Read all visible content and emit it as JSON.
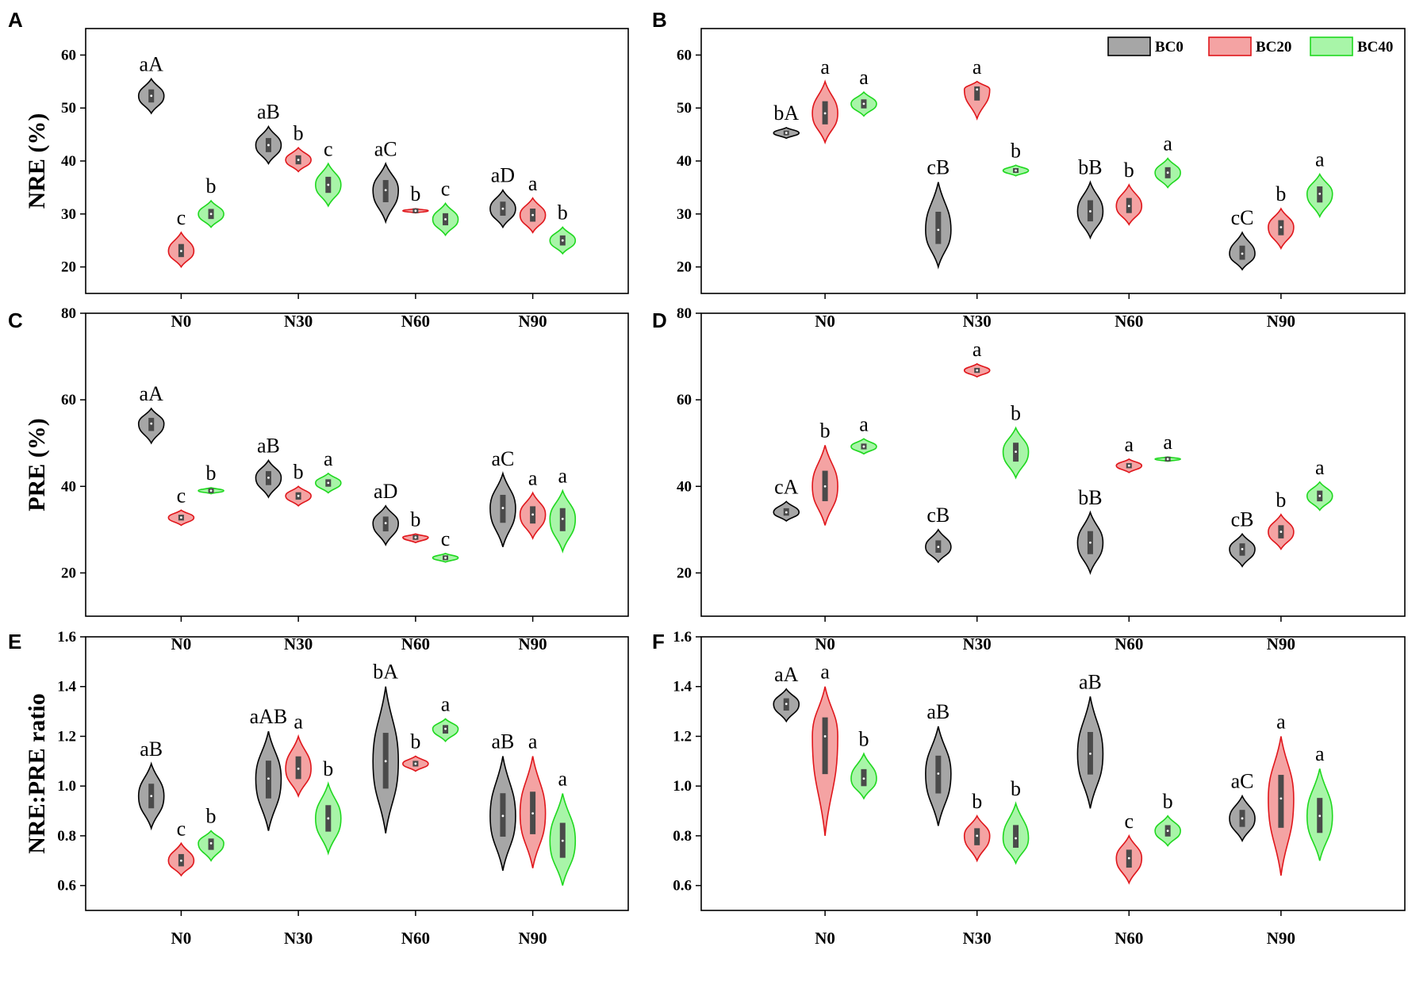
{
  "figure": {
    "legend": [
      {
        "name": "BC0",
        "fill": "#a6a6a6",
        "stroke": "#000000"
      },
      {
        "name": "BC20",
        "fill": "#f4a3a3",
        "stroke": "#e0161b"
      },
      {
        "name": "BC40",
        "fill": "#a8f5a8",
        "stroke": "#1fd81f"
      }
    ]
  },
  "chart_data": [
    {
      "panel": "A",
      "type": "violin",
      "ylabel": "NRE (%)",
      "ylim": [
        15,
        65
      ],
      "yticks": [
        20,
        30,
        40,
        50,
        60
      ],
      "ytick_labels": [
        "20",
        "30",
        "40",
        "50",
        "60"
      ],
      "categories": [
        "N0",
        "N30",
        "N60",
        "N90"
      ],
      "series": [
        {
          "name": "BC0",
          "values": [
            52.3,
            43.0,
            34.5,
            31.0
          ],
          "min": [
            49,
            39.5,
            28.5,
            27.5
          ],
          "max": [
            55.5,
            46.5,
            39.5,
            34.5
          ],
          "labels": [
            "aA",
            "aB",
            "aC",
            "aD"
          ]
        },
        {
          "name": "BC20",
          "values": [
            23.0,
            40.2,
            30.6,
            29.8
          ],
          "min": [
            20,
            38,
            30.2,
            26.5
          ],
          "max": [
            26.5,
            42.5,
            31,
            33
          ],
          "labels": [
            "c",
            "b",
            "b",
            "a"
          ]
        },
        {
          "name": "BC40",
          "values": [
            30.0,
            35.5,
            29.0,
            25.0
          ],
          "min": [
            27.5,
            31.5,
            26,
            22.5
          ],
          "max": [
            32.5,
            39.5,
            32,
            27.5
          ],
          "labels": [
            "b",
            "c",
            "c",
            "b"
          ]
        }
      ]
    },
    {
      "panel": "B",
      "type": "violin",
      "ylabel": "",
      "ylim": [
        15,
        65
      ],
      "yticks": [
        20,
        30,
        40,
        50,
        60
      ],
      "ytick_labels": [
        "20",
        "30",
        "40",
        "50",
        "60"
      ],
      "categories": [
        "N0",
        "N30",
        "N60",
        "N90"
      ],
      "series": [
        {
          "name": "BC0",
          "values": [
            45.3,
            27.0,
            30.5,
            22.5
          ],
          "min": [
            44.3,
            20,
            25.5,
            19.5
          ],
          "max": [
            46.3,
            36,
            36,
            26.5
          ],
          "labels": [
            "bA",
            "cB",
            "bB",
            "cC"
          ]
        },
        {
          "name": "BC20",
          "values": [
            49.0,
            53.5,
            31.5,
            27.5
          ],
          "min": [
            43.5,
            48,
            28,
            23.5
          ],
          "max": [
            55,
            55,
            35.5,
            31
          ],
          "labels": [
            "a",
            "a",
            "b",
            "b"
          ]
        },
        {
          "name": "BC40",
          "values": [
            50.8,
            38.2,
            37.8,
            33.8
          ],
          "min": [
            48.5,
            37.2,
            35,
            29.5
          ],
          "max": [
            53,
            39.2,
            40.5,
            37.5
          ],
          "labels": [
            "a",
            "b",
            "a",
            "a"
          ]
        }
      ]
    },
    {
      "panel": "C",
      "type": "violin",
      "ylabel": "PRE (%)",
      "ylim": [
        10,
        80
      ],
      "yticks": [
        20,
        40,
        60,
        80
      ],
      "ytick_labels": [
        "20",
        "40",
        "60",
        "80"
      ],
      "categories": [
        "N0",
        "N30",
        "N60",
        "N90"
      ],
      "series": [
        {
          "name": "BC0",
          "values": [
            54.5,
            42.0,
            31.5,
            35.0
          ],
          "min": [
            50,
            37.5,
            26.5,
            26
          ],
          "max": [
            58,
            46,
            35.5,
            43
          ],
          "labels": [
            "aA",
            "aB",
            "aD",
            "aC"
          ]
        },
        {
          "name": "BC20",
          "values": [
            32.8,
            37.8,
            28.2,
            33.5
          ],
          "min": [
            31,
            35.5,
            27,
            28
          ],
          "max": [
            34.5,
            40,
            29,
            38.5
          ],
          "labels": [
            "c",
            "b",
            "b",
            "a"
          ]
        },
        {
          "name": "BC40",
          "values": [
            39.0,
            40.8,
            23.5,
            32.5
          ],
          "min": [
            38.3,
            38.5,
            22.5,
            25
          ],
          "max": [
            39.7,
            43,
            24.5,
            39
          ],
          "labels": [
            "b",
            "a",
            "c",
            "a"
          ]
        }
      ]
    },
    {
      "panel": "D",
      "type": "violin",
      "ylabel": "",
      "ylim": [
        10,
        80
      ],
      "yticks": [
        20,
        40,
        60,
        80
      ],
      "ytick_labels": [
        "20",
        "40",
        "60",
        "80"
      ],
      "categories": [
        "N0",
        "N30",
        "N60",
        "N90"
      ],
      "series": [
        {
          "name": "BC0",
          "values": [
            34.0,
            26.0,
            27.0,
            25.5
          ],
          "min": [
            32,
            22.5,
            20,
            21.5
          ],
          "max": [
            36.5,
            30,
            34,
            29
          ],
          "labels": [
            "cA",
            "cB",
            "bB",
            "cB"
          ]
        },
        {
          "name": "BC20",
          "values": [
            40.0,
            66.8,
            44.8,
            29.5
          ],
          "min": [
            31,
            65.3,
            43.2,
            25.5
          ],
          "max": [
            49.5,
            68.3,
            46.3,
            33.5
          ],
          "labels": [
            "b",
            "a",
            "a",
            "b"
          ]
        },
        {
          "name": "BC40",
          "values": [
            49.2,
            48.0,
            46.3,
            37.8
          ],
          "min": [
            47.5,
            42,
            45.8,
            34.5
          ],
          "max": [
            51,
            53.5,
            46.8,
            41
          ],
          "labels": [
            "a",
            "b",
            "a",
            "a"
          ]
        }
      ]
    },
    {
      "panel": "E",
      "type": "violin",
      "ylabel": "NRE:PRE ratio",
      "ylim": [
        0.5,
        1.6
      ],
      "yticks": [
        0.6,
        0.8,
        1.0,
        1.2,
        1.4,
        1.6
      ],
      "ytick_labels": [
        "0.6",
        "0.8",
        "1.0",
        "1.2",
        "1.4",
        "1.6"
      ],
      "categories": [
        "N0",
        "N30",
        "N60",
        "N90"
      ],
      "series": [
        {
          "name": "BC0",
          "values": [
            0.96,
            1.03,
            1.1,
            0.88
          ],
          "min": [
            0.83,
            0.82,
            0.81,
            0.66
          ],
          "max": [
            1.09,
            1.22,
            1.4,
            1.12
          ],
          "labels": [
            "aB",
            "aAB",
            "bA",
            "aB"
          ]
        },
        {
          "name": "BC20",
          "values": [
            0.7,
            1.07,
            1.09,
            0.89
          ],
          "min": [
            0.64,
            0.96,
            1.06,
            0.67
          ],
          "max": [
            0.77,
            1.2,
            1.12,
            1.12
          ],
          "labels": [
            "c",
            "a",
            "b",
            "a"
          ]
        },
        {
          "name": "BC40",
          "values": [
            0.77,
            0.87,
            1.23,
            0.78
          ],
          "min": [
            0.7,
            0.73,
            1.18,
            0.6
          ],
          "max": [
            0.82,
            1.01,
            1.27,
            0.97
          ],
          "labels": [
            "b",
            "b",
            "a",
            "a"
          ]
        }
      ]
    },
    {
      "panel": "F",
      "type": "violin",
      "ylabel": "",
      "ylim": [
        0.5,
        1.6
      ],
      "yticks": [
        0.6,
        0.8,
        1.0,
        1.2,
        1.4,
        1.6
      ],
      "ytick_labels": [
        "0.6",
        "0.8",
        "1.0",
        "1.2",
        "1.4",
        "1.6"
      ],
      "categories": [
        "N0",
        "N30",
        "N60",
        "N90"
      ],
      "series": [
        {
          "name": "BC0",
          "values": [
            1.33,
            1.05,
            1.13,
            0.87
          ],
          "min": [
            1.26,
            0.84,
            0.91,
            0.78
          ],
          "max": [
            1.39,
            1.24,
            1.36,
            0.96
          ],
          "labels": [
            "aA",
            "aB",
            "aB",
            "aC"
          ]
        },
        {
          "name": "BC20",
          "values": [
            1.2,
            0.8,
            0.71,
            0.95
          ],
          "min": [
            0.8,
            0.7,
            0.61,
            0.64
          ],
          "max": [
            1.4,
            0.88,
            0.8,
            1.2
          ],
          "labels": [
            "a",
            "b",
            "c",
            "a"
          ]
        },
        {
          "name": "BC40",
          "values": [
            1.03,
            0.79,
            0.82,
            0.88
          ],
          "min": [
            0.95,
            0.69,
            0.76,
            0.7
          ],
          "max": [
            1.13,
            0.93,
            0.88,
            1.07
          ],
          "labels": [
            "b",
            "b",
            "b",
            "a"
          ]
        }
      ]
    }
  ]
}
